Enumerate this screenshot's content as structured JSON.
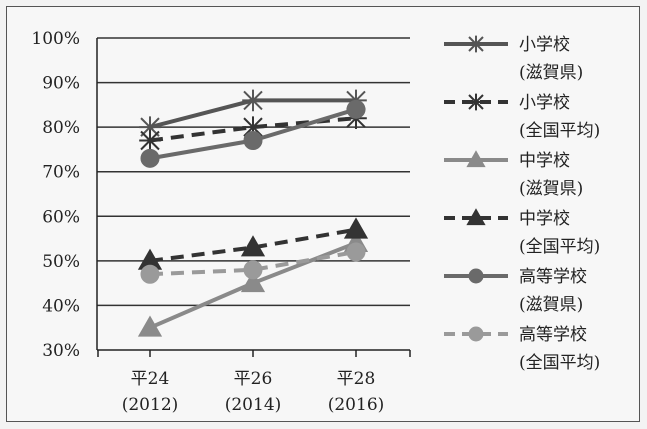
{
  "chart_data": {
    "type": "line",
    "categories": [
      {
        "line1": "平24",
        "line2": "(2012)"
      },
      {
        "line1": "平26",
        "line2": "(2014)"
      },
      {
        "line1": "平28",
        "line2": "(2016)"
      }
    ],
    "y_ticks": [
      "100%",
      "90%",
      "80%",
      "70%",
      "60%",
      "50%",
      "40%",
      "30%"
    ],
    "ylim": [
      30,
      100
    ],
    "grid": true,
    "legend_position": "right",
    "series": [
      {
        "name_line1": "小学校",
        "name_line2": "(滋賀県)",
        "values": [
          80,
          86,
          86
        ],
        "color": "#555555",
        "dash": false,
        "marker": "asterisk"
      },
      {
        "name_line1": "小学校",
        "name_line2": "(全国平均)",
        "values": [
          77,
          80,
          82
        ],
        "color": "#333333",
        "dash": true,
        "marker": "asterisk"
      },
      {
        "name_line1": "中学校",
        "name_line2": "(滋賀県)",
        "values": [
          35,
          45,
          54
        ],
        "color": "#8a8a8a",
        "dash": false,
        "marker": "triangle"
      },
      {
        "name_line1": "中学校",
        "name_line2": "(全国平均)",
        "values": [
          50,
          53,
          57
        ],
        "color": "#333333",
        "dash": true,
        "marker": "triangle"
      },
      {
        "name_line1": "高等学校",
        "name_line2": "(滋賀県)",
        "values": [
          73,
          77,
          84
        ],
        "color": "#6a6a6a",
        "dash": false,
        "marker": "circle"
      },
      {
        "name_line1": "高等学校",
        "name_line2": "(全国平均)",
        "values": [
          47,
          48,
          52
        ],
        "color": "#9a9a9a",
        "dash": true,
        "marker": "circle"
      }
    ]
  }
}
